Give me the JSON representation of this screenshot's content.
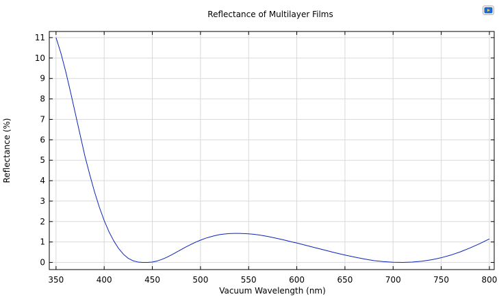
{
  "chart_data": {
    "type": "line",
    "title": "Reflectance of Multilayer Films",
    "xlabel": "Vacuum Wavelength (nm)",
    "ylabel": "Reflectance (%)",
    "xlim": [
      343,
      805
    ],
    "ylim": [
      -0.35,
      11.3
    ],
    "x_ticks": [
      350,
      400,
      450,
      500,
      550,
      600,
      650,
      700,
      750,
      800
    ],
    "y_ticks": [
      0,
      1,
      2,
      3,
      4,
      5,
      6,
      7,
      8,
      9,
      10,
      11
    ],
    "grid": true,
    "legend": "none",
    "series_color": "#0a22b8",
    "grid_color": "#d9d9d9",
    "series": [
      {
        "x": [
          350,
          355,
          360,
          365,
          370,
          375,
          380,
          385,
          390,
          395,
          400,
          405,
          410,
          415,
          420,
          425,
          430,
          435,
          440,
          445,
          450,
          455,
          460,
          465,
          470,
          475,
          480,
          485,
          490,
          495,
          500,
          505,
          510,
          515,
          520,
          525,
          530,
          535,
          540,
          545,
          550,
          555,
          560,
          565,
          570,
          575,
          580,
          585,
          590,
          595,
          600,
          610,
          620,
          630,
          640,
          650,
          660,
          670,
          680,
          690,
          700,
          710,
          720,
          730,
          740,
          750,
          760,
          770,
          780,
          790,
          800
        ],
        "y": [
          11.0,
          10.25,
          9.35,
          8.35,
          7.3,
          6.25,
          5.2,
          4.3,
          3.45,
          2.7,
          2.05,
          1.5,
          1.05,
          0.68,
          0.4,
          0.2,
          0.08,
          0.02,
          0.0,
          0.0,
          0.02,
          0.07,
          0.15,
          0.25,
          0.37,
          0.5,
          0.63,
          0.76,
          0.88,
          0.99,
          1.09,
          1.18,
          1.25,
          1.31,
          1.36,
          1.39,
          1.41,
          1.42,
          1.42,
          1.41,
          1.4,
          1.38,
          1.35,
          1.31,
          1.27,
          1.22,
          1.17,
          1.12,
          1.06,
          1.0,
          0.95,
          0.83,
          0.71,
          0.59,
          0.47,
          0.36,
          0.26,
          0.17,
          0.09,
          0.04,
          0.01,
          0.0,
          0.02,
          0.06,
          0.13,
          0.23,
          0.36,
          0.52,
          0.71,
          0.92,
          1.15
        ]
      }
    ]
  },
  "toolbar": {
    "icon": "camera-icon"
  }
}
